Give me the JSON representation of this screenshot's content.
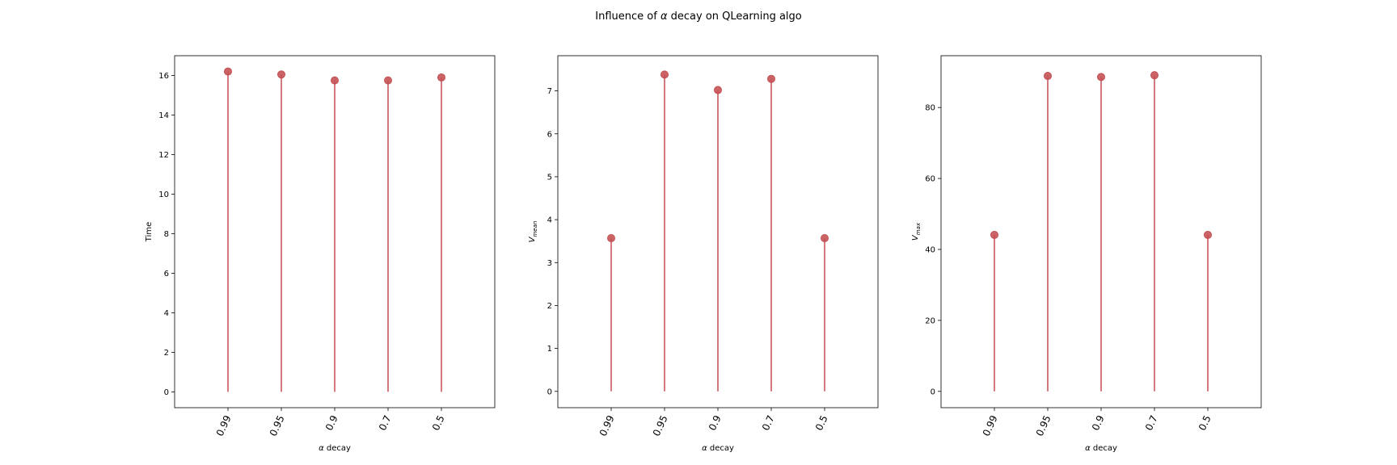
{
  "figure": {
    "title_prefix": "Influence of ",
    "title_symbol": "α",
    "title_suffix": " decay on QLearning algo"
  },
  "chart_data": [
    {
      "type": "stem",
      "categories": [
        "0.99",
        "0.95",
        "0.9",
        "0.7",
        "0.5"
      ],
      "values": [
        16.2,
        16.05,
        15.75,
        15.75,
        15.9
      ],
      "xlabel": {
        "symbol": "α",
        "text": " decay"
      },
      "ylabel": {
        "main": "Time",
        "sub": ""
      },
      "ylim": [
        -0.8,
        17.0
      ],
      "yticks": [
        0,
        2,
        4,
        6,
        8,
        10,
        12,
        14,
        16
      ],
      "xlim": [
        -1.0,
        5.0
      ],
      "color": "#c44e52"
    },
    {
      "type": "stem",
      "categories": [
        "0.99",
        "0.95",
        "0.9",
        "0.7",
        "0.5"
      ],
      "values": [
        3.57,
        7.38,
        7.02,
        7.28,
        3.57
      ],
      "xlabel": {
        "symbol": "α",
        "text": " decay"
      },
      "ylabel": {
        "main": "V",
        "sub": "mean"
      },
      "ylim": [
        -0.38,
        7.82
      ],
      "yticks": [
        0,
        1,
        2,
        3,
        4,
        5,
        6,
        7
      ],
      "xlim": [
        -1.0,
        5.0
      ],
      "color": "#c44e52"
    },
    {
      "type": "stem",
      "categories": [
        "0.99",
        "0.95",
        "0.9",
        "0.7",
        "0.5"
      ],
      "values": [
        44.1,
        88.9,
        88.6,
        89.1,
        44.1
      ],
      "xlabel": {
        "symbol": "α",
        "text": " decay"
      },
      "ylabel": {
        "main": "V",
        "sub": "max"
      },
      "ylim": [
        -4.6,
        94.6
      ],
      "yticks": [
        0,
        20,
        40,
        60,
        80
      ],
      "xlim": [
        -1.0,
        5.0
      ],
      "color": "#c44e52"
    }
  ]
}
